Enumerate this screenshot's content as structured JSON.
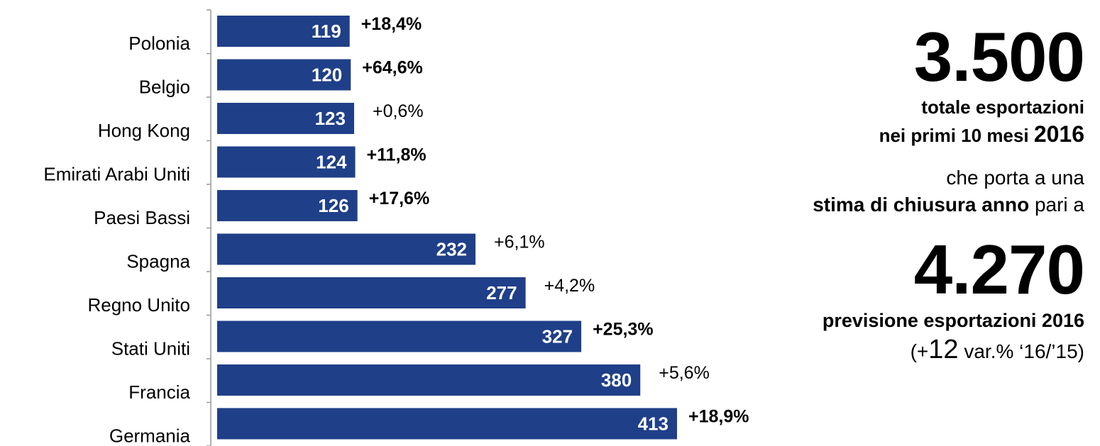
{
  "chart_data": {
    "type": "bar",
    "orientation": "horizontal",
    "categories": [
      "Polonia",
      "Belgio",
      "Hong Kong",
      "Emirati Arabi Uniti",
      "Paesi Bassi",
      "Spagna",
      "Regno Unito",
      "Stati Uniti",
      "Francia",
      "Germania"
    ],
    "values": [
      119,
      120,
      123,
      124,
      126,
      232,
      277,
      327,
      380,
      413
    ],
    "value_labels": [
      "119",
      "120",
      "123",
      "124",
      "126",
      "232",
      "277",
      "327",
      "380",
      "413"
    ],
    "changes": [
      "+18,4%",
      "+64,6%",
      "+0,6%",
      "+11,8%",
      "+17,6%",
      "+6,1%",
      "+4,2%",
      "+25,3%",
      "+5,6%",
      "+18,9%"
    ],
    "changes_bold": [
      true,
      true,
      false,
      true,
      true,
      false,
      false,
      true,
      false,
      true
    ],
    "bar_color": "#1f3f88",
    "xlim": [
      0,
      415
    ],
    "grid": false,
    "legend": "none"
  },
  "summary": {
    "total_value": "3.500",
    "total_line1": "totale esportazioni",
    "total_line2": "nei primi 10 mesi",
    "total_year": "2016",
    "estimate_line1": "che porta a una",
    "estimate_bold": "stima di chiusura anno",
    "estimate_rest": "pari a",
    "forecast_value": "4.270",
    "forecast_label": "previsione esportazioni 2016",
    "var_open": "(+",
    "var_number": "12",
    "var_text": "var.% ‘16/’15)"
  }
}
